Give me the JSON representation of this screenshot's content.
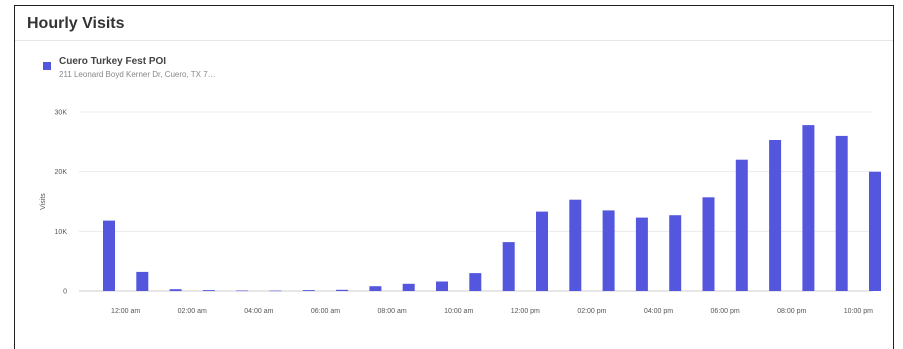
{
  "card": {
    "title": "Hourly Visits"
  },
  "legend": {
    "series_name": "Cuero Turkey Fest POI",
    "series_address": "211 Leonard Boyd Kerner Dr, Cuero, TX 7…",
    "swatch_color": "#5457de"
  },
  "chart_data": {
    "type": "bar",
    "title": "Hourly Visits",
    "xlabel": "",
    "ylabel": "Visits",
    "ylim": [
      0,
      30000
    ],
    "yticks": [
      0,
      10000,
      20000,
      30000
    ],
    "ytick_labels": [
      "0",
      "10K",
      "20K",
      "30K"
    ],
    "grid": true,
    "legend_position": "top-left",
    "bar_color": "#5457de",
    "categories": [
      "12:00 am",
      "1:00 am",
      "2:00 am",
      "3:00 am",
      "4:00 am",
      "5:00 am",
      "6:00 am",
      "7:00 am",
      "8:00 am",
      "9:00 am",
      "10:00 am",
      "11:00 am",
      "12:00 pm",
      "1:00 pm",
      "2:00 pm",
      "3:00 pm",
      "4:00 pm",
      "5:00 pm",
      "6:00 pm",
      "7:00 pm",
      "8:00 pm",
      "9:00 pm",
      "10:00 pm",
      "11:00 pm"
    ],
    "xtick_labels": [
      "12:00 am",
      "",
      "02:00 am",
      "",
      "04:00 am",
      "",
      "06:00 am",
      "",
      "08:00 am",
      "",
      "10:00 am",
      "",
      "12:00 pm",
      "",
      "02:00 pm",
      "",
      "04:00 pm",
      "",
      "06:00 pm",
      "",
      "08:00 pm",
      "",
      "10:00 pm",
      ""
    ],
    "series": [
      {
        "name": "Cuero Turkey Fest POI",
        "values": [
          11800,
          3200,
          300,
          150,
          80,
          60,
          150,
          200,
          800,
          1200,
          1600,
          3000,
          8200,
          13300,
          15300,
          13500,
          12300,
          12700,
          15700,
          22000,
          25300,
          27800,
          26000,
          20000
        ]
      }
    ]
  }
}
